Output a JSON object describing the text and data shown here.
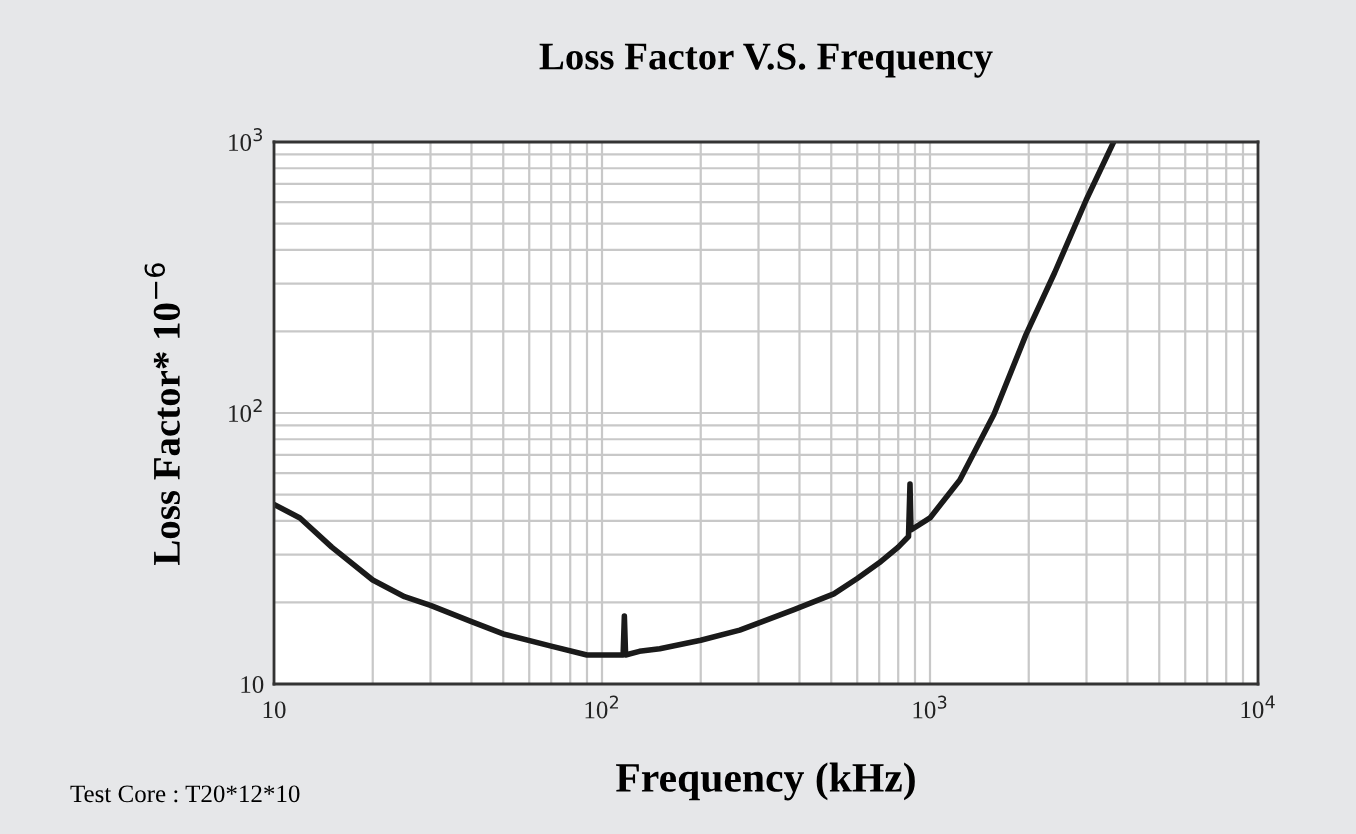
{
  "chart_data": {
    "type": "line",
    "title": "Loss Factor V.S. Frequency",
    "xlabel": "Frequency (kHz)",
    "ylabel": "Loss Factor* 10$^{−6}$",
    "log": "xy",
    "grid": true,
    "marker": "none",
    "line_style": "solid",
    "xlim": [
      10,
      10000
    ],
    "ylim": [
      10,
      1000
    ],
    "xticks": [
      10,
      {
        "value": 100,
        "label": "10$^{2}$"
      },
      {
        "value": 1000,
        "label": "10$^{3}$"
      },
      {
        "value": 10000,
        "label": "10$^{4}$"
      }
    ],
    "yticks": [
      10,
      {
        "value": 100,
        "label": "10$^{2}$"
      },
      {
        "value": 1000,
        "label": "10$^{3}$"
      }
    ],
    "annotations": [
      "Test Core : T20*12*10"
    ],
    "series": [
      {
        "color": "#1a1a1a",
        "x": [
          10,
          12,
          15,
          20,
          25,
          30,
          40,
          50,
          70,
          90,
          110,
          116,
          117,
          118,
          130,
          150,
          200,
          263,
          385,
          509,
          600,
          700,
          800,
          860,
          869,
          875,
          1000,
          1233,
          1567,
          1963,
          2400,
          2993,
          3630
        ],
        "values": [
          46,
          41,
          32,
          24.2,
          21,
          19.5,
          17,
          15.3,
          13.8,
          12.8,
          12.8,
          12.8,
          17.8,
          12.8,
          13.2,
          13.5,
          14.5,
          15.8,
          18.8,
          21.5,
          24.5,
          28,
          32,
          35,
          54.7,
          37,
          41,
          56.6,
          99,
          195,
          330,
          611,
          1000
        ]
      }
    ]
  }
}
